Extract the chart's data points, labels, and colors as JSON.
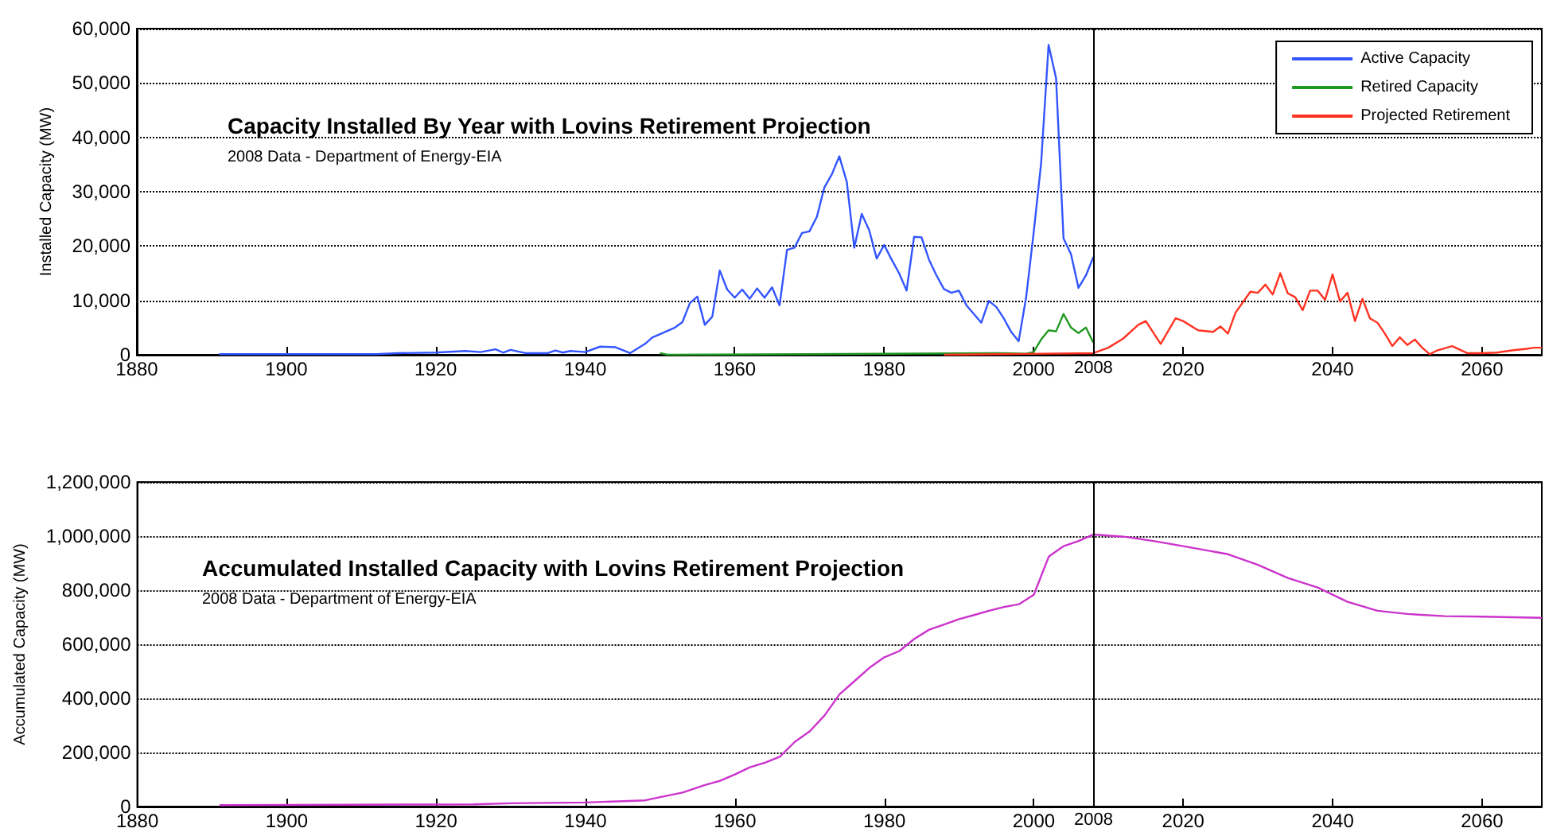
{
  "chart_data": [
    {
      "type": "line",
      "title": "Capacity Installed By Year with Lovins Retirement Projection",
      "subtitle": "2008 Data - Department of Energy-EIA",
      "ylabel": "Installed Capacity (MW)",
      "xlim": [
        1880,
        2068
      ],
      "xticks": [
        1880,
        1900,
        1920,
        1940,
        1960,
        1980,
        2000,
        2020,
        2040,
        2060
      ],
      "ylim": [
        0,
        60000
      ],
      "yticks": [
        0,
        {
          "value": 10000,
          "label": "10,000"
        },
        {
          "value": 20000,
          "label": "20,000"
        },
        {
          "value": 30000,
          "label": "30,000"
        },
        {
          "value": 40000,
          "label": "40,000"
        },
        {
          "value": 50000,
          "label": "50,000"
        },
        {
          "value": 60000,
          "label": "60,000"
        }
      ],
      "grid": "y",
      "legend": "top right",
      "line_style": "solid",
      "ref_lines": [
        {
          "axis": "x",
          "value": 2008,
          "label": "2008"
        }
      ],
      "series": [
        {
          "name": "Active Capacity",
          "color": "#3355ff",
          "x": [
            1891,
            1900,
            1912,
            1915,
            1920,
            1924,
            1926,
            1928,
            1929,
            1930,
            1932,
            1935,
            1936,
            1937,
            1938,
            1940,
            1942,
            1944,
            1946,
            1948,
            1949,
            1950,
            1952,
            1953,
            1954,
            1955,
            1956,
            1957,
            1958,
            1959,
            1960,
            1961,
            1962,
            1963,
            1964,
            1965,
            1966,
            1967,
            1968,
            1969,
            1970,
            1971,
            1972,
            1973,
            1974,
            1975,
            1976,
            1977,
            1978,
            1979,
            1980,
            1981,
            1982,
            1983,
            1984,
            1985,
            1986,
            1987,
            1988,
            1989,
            1990,
            1991,
            1992,
            1993,
            1994,
            1995,
            1996,
            1997,
            1998,
            1999,
            2000,
            2001,
            2002,
            2003,
            2004,
            2005,
            2006,
            2007,
            2008
          ],
          "values": [
            100,
            100,
            100,
            300,
            400,
            700,
            500,
            1000,
            400,
            900,
            300,
            300,
            800,
            400,
            700,
            500,
            1500,
            1400,
            300,
            2000,
            3200,
            3800,
            5000,
            6000,
            9500,
            10700,
            5500,
            7000,
            15500,
            12000,
            10500,
            12000,
            10300,
            12200,
            10500,
            12400,
            9100,
            19300,
            19700,
            22400,
            22700,
            25400,
            30800,
            33200,
            36500,
            31800,
            19700,
            25900,
            22900,
            17700,
            20200,
            17500,
            15000,
            11800,
            21700,
            21600,
            17500,
            14600,
            12100,
            11400,
            11800,
            9100,
            7500,
            5900,
            9900,
            8800,
            6700,
            4200,
            2500,
            10600,
            22400,
            35200,
            57000,
            50900,
            21400,
            18500,
            12300,
            14600,
            18000
          ]
        },
        {
          "name": "Retired Capacity",
          "color": "#229922",
          "x": [
            1950,
            1951,
            1970,
            1995,
            1999,
            2000,
            2001,
            2002,
            2003,
            2004,
            2005,
            2006,
            2007,
            2008
          ],
          "values": [
            300,
            0,
            100,
            300,
            200,
            500,
            2800,
            4500,
            4300,
            7500,
            5000,
            4000,
            5000,
            2200
          ]
        },
        {
          "name": "Projected Retirement",
          "color": "#ff3322",
          "x": [
            1988,
            2008,
            2010,
            2012,
            2014,
            2015,
            2017,
            2019,
            2020,
            2022,
            2024,
            2025,
            2026,
            2027,
            2029,
            2030,
            2031,
            2032,
            2033,
            2034,
            2035,
            2036,
            2037,
            2038,
            2039,
            2040,
            2041,
            2042,
            2043,
            2044,
            2045,
            2046,
            2047,
            2048,
            2049,
            2050,
            2051,
            2052,
            2053,
            2054,
            2056,
            2058,
            2060,
            2062,
            2064,
            2066,
            2067,
            2068
          ],
          "values": [
            0,
            300,
            1300,
            3000,
            5500,
            6200,
            2000,
            6700,
            6200,
            4500,
            4200,
            5200,
            3900,
            7700,
            11600,
            11400,
            12900,
            11100,
            15000,
            11300,
            10600,
            8200,
            11800,
            11800,
            10100,
            14800,
            9800,
            11400,
            6200,
            10300,
            6700,
            5900,
            3900,
            1600,
            3200,
            1800,
            2800,
            1300,
            100,
            800,
            1600,
            300,
            300,
            400,
            800,
            1100,
            1300,
            1300
          ]
        }
      ]
    },
    {
      "type": "line",
      "title": "Accumulated Installed Capacity with Lovins Retirement Projection",
      "subtitle": "2008 Data - Department of Energy-EIA",
      "ylabel": "Accumulated Capacity (MW)",
      "xlim": [
        1880,
        2068
      ],
      "xticks": [
        1880,
        1900,
        1920,
        1940,
        1960,
        1980,
        2000,
        2020,
        2040,
        2060
      ],
      "ylim": [
        0,
        1200000
      ],
      "yticks": [
        0,
        {
          "value": 200000,
          "label": "200,000"
        },
        {
          "value": 400000,
          "label": "400,000"
        },
        {
          "value": 600000,
          "label": "600,000"
        },
        {
          "value": 800000,
          "label": "800,000"
        },
        {
          "value": 1000000,
          "label": "1,000,000"
        },
        {
          "value": 1200000,
          "label": "1,200,000"
        }
      ],
      "grid": "y",
      "line_style": "solid",
      "ref_lines": [
        {
          "axis": "x",
          "value": 2008,
          "label": "2008"
        }
      ],
      "series": [
        {
          "color": "#cc33cc",
          "x": [
            1891,
            1925,
            1930,
            1940,
            1948,
            1950,
            1953,
            1956,
            1958,
            1960,
            1962,
            1964,
            1966,
            1968,
            1970,
            1972,
            1974,
            1976,
            1978,
            1980,
            1982,
            1984,
            1986,
            1988,
            1990,
            1992,
            1994,
            1996,
            1998,
            2000,
            2002,
            2004,
            2006,
            2008,
            2012,
            2016,
            2020,
            2026,
            2030,
            2034,
            2038,
            2042,
            2046,
            2050,
            2055,
            2060,
            2068
          ],
          "values": [
            5000,
            8000,
            12000,
            15000,
            23000,
            35000,
            52000,
            80000,
            95000,
            119000,
            145000,
            162000,
            184000,
            239000,
            278000,
            337000,
            415000,
            464000,
            513000,
            552000,
            575000,
            620000,
            654000,
            673000,
            693000,
            708000,
            724000,
            738000,
            748000,
            783000,
            924000,
            963000,
            982000,
            1006000,
            998000,
            982000,
            963000,
            933000,
            894000,
            845000,
            810000,
            757000,
            724000,
            712000,
            704000,
            702000,
            698000
          ]
        }
      ]
    }
  ]
}
